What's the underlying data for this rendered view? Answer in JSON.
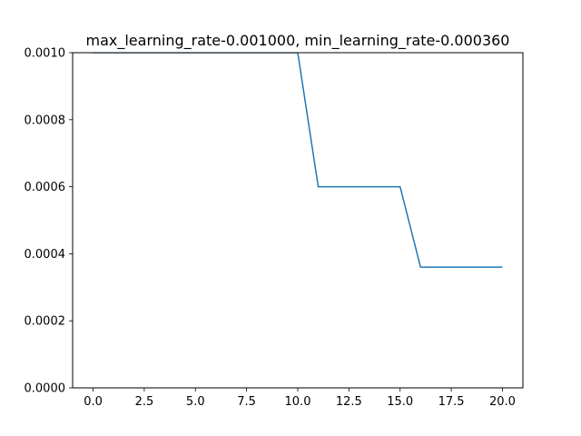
{
  "chart_data": {
    "type": "line",
    "title": "max_learning_rate-0.001000, min_learning_rate-0.000360",
    "xlabel": "",
    "ylabel": "",
    "xlim": [
      -1,
      21
    ],
    "ylim": [
      0,
      0.001
    ],
    "x_ticks": [
      0,
      2.5,
      5,
      7.5,
      10,
      12.5,
      15,
      17.5,
      20
    ],
    "x_tick_labels": [
      "0.0",
      "2.5",
      "5.0",
      "7.5",
      "10.0",
      "12.5",
      "15.0",
      "17.5",
      "20.0"
    ],
    "y_ticks": [
      0,
      0.0002,
      0.0004,
      0.0006,
      0.0008,
      0.001
    ],
    "y_tick_labels": [
      "0.0000",
      "0.0002",
      "0.0004",
      "0.0006",
      "0.0008",
      "0.0010"
    ],
    "grid": false,
    "series": [
      {
        "color": "#1f77b4",
        "x": [
          0,
          1,
          2,
          3,
          4,
          5,
          6,
          7,
          8,
          9,
          10,
          11,
          12,
          13,
          14,
          15,
          16,
          17,
          18,
          19,
          20
        ],
        "y": [
          0.001,
          0.001,
          0.001,
          0.001,
          0.001,
          0.001,
          0.001,
          0.001,
          0.001,
          0.001,
          0.001,
          0.0006,
          0.0006,
          0.0006,
          0.0006,
          0.0006,
          0.00036,
          0.00036,
          0.00036,
          0.00036,
          0.00036
        ]
      }
    ]
  }
}
